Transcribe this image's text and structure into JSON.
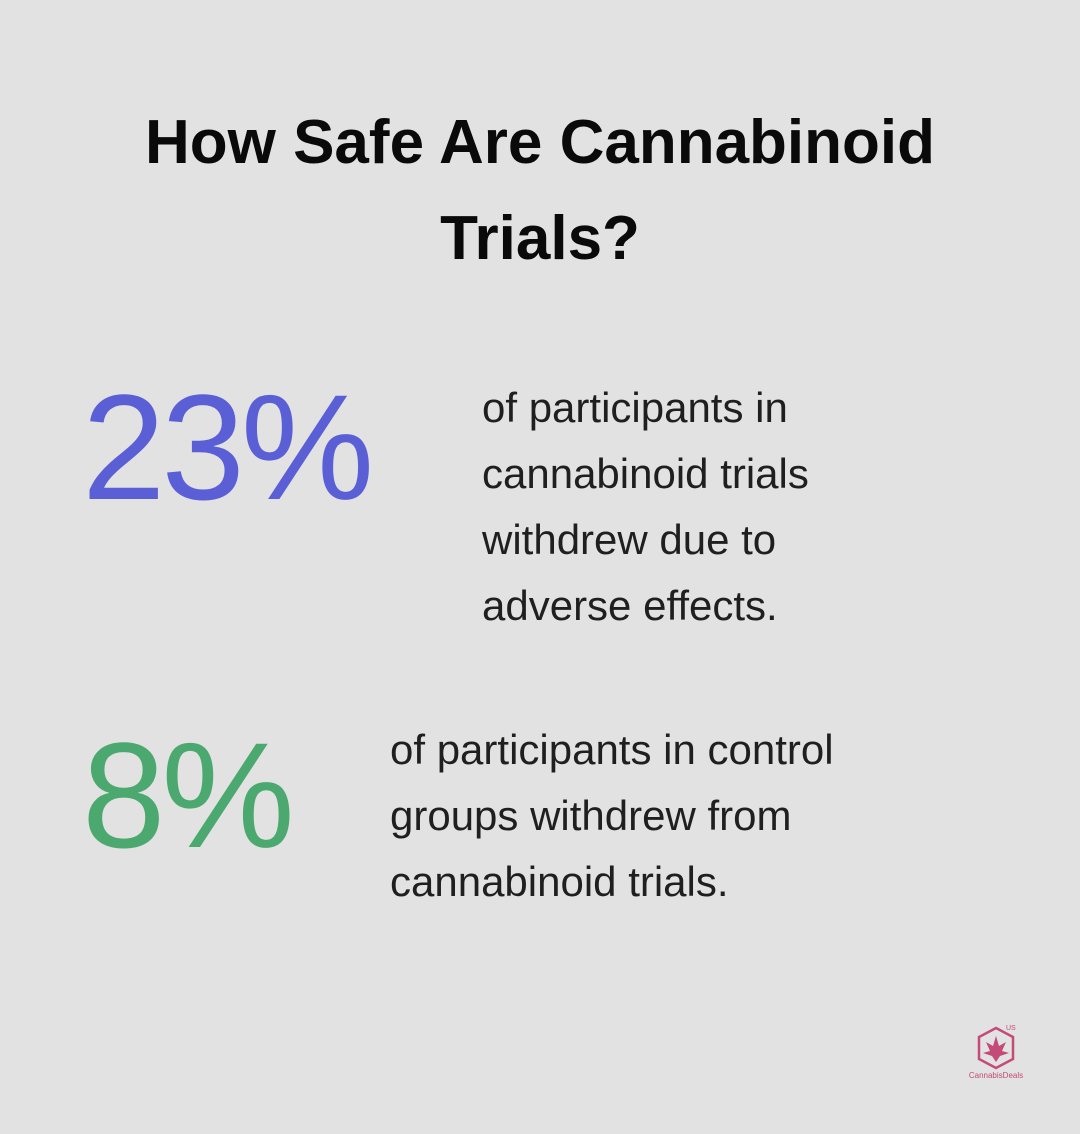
{
  "header": {
    "title": "How Safe Are Cannabinoid Trials?"
  },
  "stats": [
    {
      "value": "23%",
      "description": [
        "of participants in",
        "cannabinoid trials",
        "withdrew due to",
        "adverse effects."
      ]
    },
    {
      "value": "8%",
      "description": [
        "of participants in control",
        "groups withdrew from",
        "cannabinoid trials."
      ]
    }
  ],
  "logo": {
    "name": "CannabisDeals",
    "region": "US"
  }
}
